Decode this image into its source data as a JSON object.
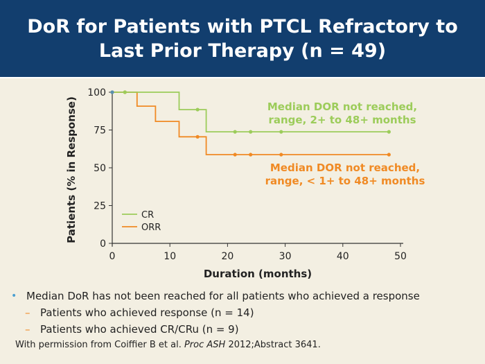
{
  "slide": {
    "title_line1": "DoR for Patients with PTCL Refractory to",
    "title_line2": "Last Prior Therapy (n = 49)"
  },
  "bullets": {
    "main": "Median DoR has not been reached for all patients who achieved a response",
    "sub": [
      "Patients who achieved response (n = 14)",
      "Patients who achieved CR/CRu (n = 9)"
    ]
  },
  "citation": {
    "prefix": "With permission from Coiffier B et al. ",
    "journal": "Proc ASH",
    "suffix": " 2012;Abstract 3641."
  },
  "chart_data": {
    "type": "line",
    "step": true,
    "xlabel": "Duration (months)",
    "ylabel": "Patients (% in Response)",
    "xlim": [
      0,
      50
    ],
    "ylim": [
      0,
      100
    ],
    "xticks": [
      0,
      10,
      20,
      30,
      40,
      50
    ],
    "yticks": [
      0,
      25,
      50,
      75,
      100
    ],
    "grid": false,
    "legend_position": "bottom-left",
    "colors": {
      "CR": "#9ccc5a",
      "ORR": "#f08a24",
      "axis": "#333333"
    },
    "series": [
      {
        "name": "CR",
        "steps": [
          [
            0,
            100
          ],
          [
            11.6,
            100
          ],
          [
            11.6,
            88.5
          ],
          [
            16.3,
            88.5
          ],
          [
            16.3,
            73.8
          ],
          [
            48,
            73.8
          ]
        ],
        "censored": [
          [
            0,
            100
          ],
          [
            2.2,
            100
          ],
          [
            14.8,
            88.5
          ],
          [
            21.3,
            73.8
          ],
          [
            24,
            73.8
          ],
          [
            29.3,
            73.8
          ],
          [
            48,
            73.8
          ]
        ]
      },
      {
        "name": "ORR",
        "steps": [
          [
            0,
            100
          ],
          [
            4.3,
            100
          ],
          [
            4.3,
            90.8
          ],
          [
            7.5,
            90.8
          ],
          [
            7.5,
            80.7
          ],
          [
            11.6,
            80.7
          ],
          [
            11.6,
            70.5
          ],
          [
            16.3,
            70.5
          ],
          [
            16.3,
            58.7
          ],
          [
            48,
            58.7
          ]
        ],
        "censored": [
          [
            2.2,
            100
          ],
          [
            14.8,
            70.5
          ],
          [
            21.3,
            58.7
          ],
          [
            24,
            58.7
          ],
          [
            29.3,
            58.7
          ],
          [
            48,
            58.7
          ]
        ]
      }
    ],
    "annotations": [
      {
        "series": "CR",
        "line1": "Median DOR not reached,",
        "line2": "range, 2+ to 48+ months"
      },
      {
        "series": "ORR",
        "line1": "Median DOR not reached,",
        "line2": "range, < 1+ to 48+ months"
      }
    ]
  }
}
